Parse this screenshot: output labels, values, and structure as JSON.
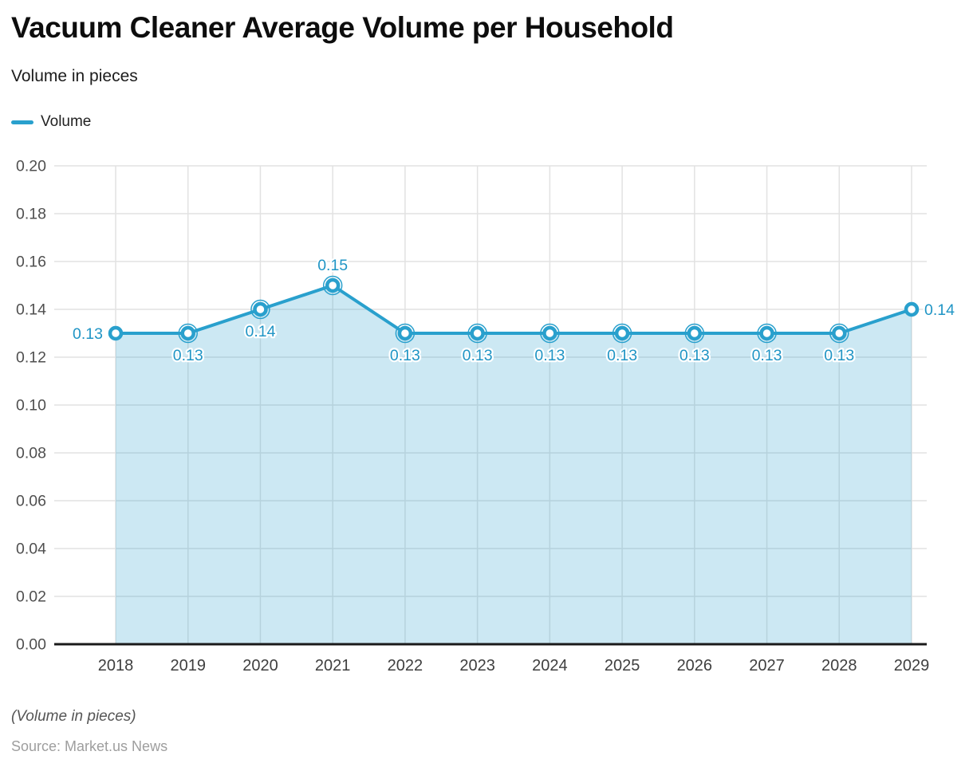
{
  "header": {
    "title": "Vacuum Cleaner Average Volume per Household",
    "subtitle": "Volume in pieces"
  },
  "legend": {
    "items": [
      {
        "label": "Volume",
        "color": "#29a0cd"
      }
    ]
  },
  "colors": {
    "accent": "#29a0cd",
    "area_fill_rgba": "rgba(41,160,205,0.24)",
    "data_label": "#2095c5",
    "gridline": "#e2e2e2",
    "axis_line": "#1a1a1a",
    "y_tick_label": "#4f4f4f",
    "x_tick_label": "#3f3f3f"
  },
  "footer": {
    "note": "(Volume in pieces)",
    "source": "Source: Market.us News"
  },
  "chart_data": {
    "type": "area",
    "title": "Vacuum Cleaner Average Volume per Household",
    "subtitle": "Volume in pieces",
    "categories": [
      "2018",
      "2019",
      "2020",
      "2021",
      "2022",
      "2023",
      "2024",
      "2025",
      "2026",
      "2027",
      "2028",
      "2029"
    ],
    "series": [
      {
        "name": "Volume",
        "values": [
          0.13,
          0.13,
          0.14,
          0.15,
          0.13,
          0.13,
          0.13,
          0.13,
          0.13,
          0.13,
          0.13,
          0.14
        ]
      }
    ],
    "data_labels": [
      "0.13",
      "0.13",
      "0.14",
      "0.15",
      "0.13",
      "0.13",
      "0.13",
      "0.13",
      "0.13",
      "0.13",
      "0.13",
      "0.14"
    ],
    "ylabel": "",
    "xlabel": "",
    "ylim": [
      0,
      0.2
    ],
    "ytick_step": 0.02,
    "ytick_labels": [
      "0.00",
      "0.02",
      "0.04",
      "0.06",
      "0.08",
      "0.10",
      "0.12",
      "0.14",
      "0.16",
      "0.18",
      "0.20"
    ],
    "grid": true,
    "legend_position": "top-left",
    "note": "(Volume in pieces)",
    "source": "Source: Market.us News"
  }
}
